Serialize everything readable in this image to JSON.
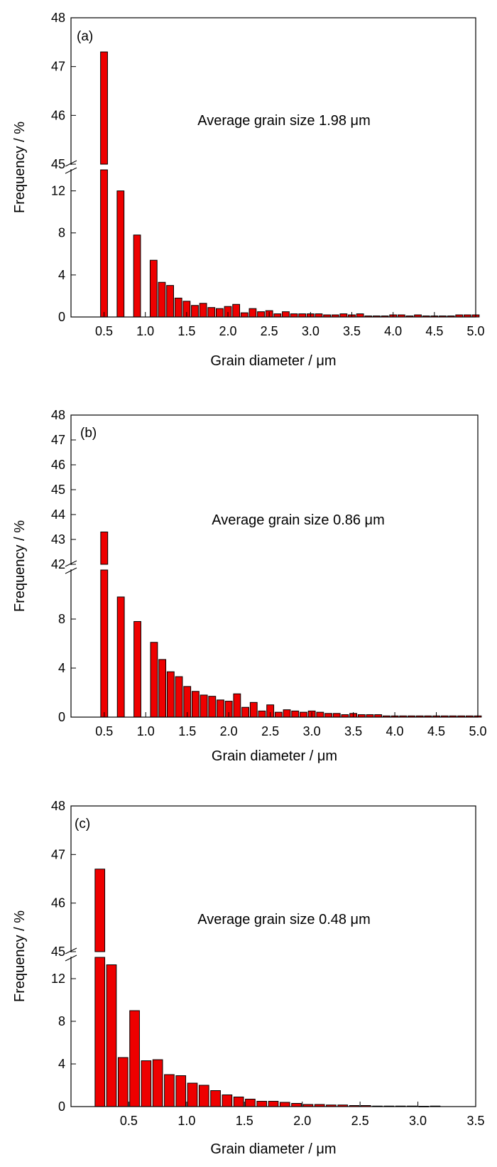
{
  "chart_data": [
    {
      "type": "bar",
      "panel_label": "(a)",
      "annotation": "Average grain size 1.98 μm",
      "xlabel": "Grain diameter / μm",
      "ylabel": "Frequency / %",
      "xlim": [
        0.1,
        5.0
      ],
      "xticks": [
        "0.5",
        "1.0",
        "1.5",
        "2.0",
        "2.5",
        "3.0",
        "3.5",
        "4.0",
        "4.5",
        "5.0"
      ],
      "xtick_values": [
        0.5,
        1.0,
        1.5,
        2.0,
        2.5,
        3.0,
        3.5,
        4.0,
        4.5,
        5.0
      ],
      "axis_break": {
        "lower_ylim": [
          0,
          14
        ],
        "upper_ylim": [
          45,
          48
        ],
        "lower_ticks": [
          "0",
          "4",
          "8",
          "12"
        ],
        "upper_ticks": [
          "45",
          "46",
          "47",
          "48"
        ]
      },
      "bin_width": 0.1,
      "x": [
        0.5,
        0.6,
        0.7,
        0.8,
        0.9,
        1.0,
        1.1,
        1.2,
        1.3,
        1.4,
        1.5,
        1.6,
        1.7,
        1.8,
        1.9,
        2.0,
        2.1,
        2.2,
        2.3,
        2.4,
        2.5,
        2.6,
        2.7,
        2.8,
        2.9,
        3.0,
        3.1,
        3.2,
        3.3,
        3.4,
        3.5,
        3.6,
        3.7,
        3.8,
        3.9,
        4.0,
        4.1,
        4.2,
        4.3,
        4.4,
        4.5,
        4.6,
        4.7,
        4.8,
        4.9,
        5.0
      ],
      "values": [
        47.3,
        0,
        12.0,
        0,
        7.8,
        0,
        5.4,
        3.3,
        3.0,
        1.8,
        1.5,
        1.1,
        1.3,
        0.9,
        0.8,
        1.0,
        1.2,
        0.4,
        0.8,
        0.5,
        0.6,
        0.3,
        0.5,
        0.3,
        0.3,
        0.3,
        0.3,
        0.2,
        0.2,
        0.3,
        0.2,
        0.3,
        0.1,
        0.1,
        0.1,
        0.2,
        0.2,
        0.1,
        0.2,
        0.1,
        0.1,
        0.1,
        0.1,
        0.2,
        0.2,
        0.2
      ],
      "colors": {
        "bar": "#ee0000",
        "bar_edge": "#000000"
      }
    },
    {
      "type": "bar",
      "panel_label": "(b)",
      "annotation": "Average grain size 0.86 μm",
      "xlabel": "Grain diameter / μm",
      "ylabel": "Frequency / %",
      "xlim": [
        0.1,
        5.0
      ],
      "xticks": [
        "0.5",
        "1.0",
        "1.5",
        "2.0",
        "2.5",
        "3.0",
        "3.5",
        "4.0",
        "4.5",
        "5.0"
      ],
      "xtick_values": [
        0.5,
        1.0,
        1.5,
        2.0,
        2.5,
        3.0,
        3.5,
        4.0,
        4.5,
        5.0
      ],
      "axis_break": {
        "lower_ylim": [
          0,
          12
        ],
        "upper_ylim": [
          42,
          48
        ],
        "lower_ticks": [
          "0",
          "4",
          "8"
        ],
        "upper_ticks": [
          "42",
          "43",
          "44",
          "45",
          "46",
          "47",
          "48"
        ]
      },
      "bin_width": 0.1,
      "x": [
        0.5,
        0.6,
        0.7,
        0.8,
        0.9,
        1.0,
        1.1,
        1.2,
        1.3,
        1.4,
        1.5,
        1.6,
        1.7,
        1.8,
        1.9,
        2.0,
        2.1,
        2.2,
        2.3,
        2.4,
        2.5,
        2.6,
        2.7,
        2.8,
        2.9,
        3.0,
        3.1,
        3.2,
        3.3,
        3.4,
        3.5,
        3.6,
        3.7,
        3.8,
        3.9,
        4.0,
        4.1,
        4.2,
        4.3,
        4.4,
        4.5,
        4.6,
        4.7,
        4.8,
        4.9,
        5.0
      ],
      "values": [
        43.3,
        0,
        9.8,
        0,
        7.8,
        0,
        6.1,
        4.7,
        3.7,
        3.3,
        2.5,
        2.1,
        1.8,
        1.7,
        1.4,
        1.3,
        1.9,
        0.8,
        1.2,
        0.5,
        1.0,
        0.4,
        0.6,
        0.5,
        0.4,
        0.5,
        0.4,
        0.3,
        0.3,
        0.2,
        0.3,
        0.2,
        0.2,
        0.2,
        0.1,
        0.1,
        0.1,
        0.1,
        0.1,
        0.1,
        0.1,
        0.1,
        0.1,
        0.1,
        0.1,
        0.1
      ],
      "colors": {
        "bar": "#ee0000",
        "bar_edge": "#000000"
      }
    },
    {
      "type": "bar",
      "panel_label": "(c)",
      "annotation": "Average grain size 0.48 μm",
      "xlabel": "Grain diameter / μm",
      "ylabel": "Frequency / %",
      "xlim": [
        0.0,
        3.5
      ],
      "xticks": [
        "0.5",
        "1.0",
        "1.5",
        "2.0",
        "2.5",
        "3.0",
        "3.5"
      ],
      "xtick_values": [
        0.5,
        1.0,
        1.5,
        2.0,
        2.5,
        3.0,
        3.5
      ],
      "axis_break": {
        "lower_ylim": [
          0,
          14
        ],
        "upper_ylim": [
          45,
          48
        ],
        "lower_ticks": [
          "0",
          "4",
          "8",
          "12"
        ],
        "upper_ticks": [
          "45",
          "46",
          "47",
          "48"
        ]
      },
      "bin_width": 0.1,
      "x": [
        0.25,
        0.35,
        0.45,
        0.55,
        0.65,
        0.75,
        0.85,
        0.95,
        1.05,
        1.15,
        1.25,
        1.35,
        1.45,
        1.55,
        1.65,
        1.75,
        1.85,
        1.95,
        2.05,
        2.15,
        2.25,
        2.35,
        2.45,
        2.55,
        2.65,
        2.75,
        2.85,
        2.95,
        3.05,
        3.15
      ],
      "values": [
        46.7,
        13.3,
        4.6,
        9.0,
        4.3,
        4.4,
        3.0,
        2.9,
        2.2,
        2.0,
        1.5,
        1.1,
        0.9,
        0.7,
        0.5,
        0.5,
        0.4,
        0.3,
        0.2,
        0.2,
        0.15,
        0.15,
        0.1,
        0.1,
        0.05,
        0.05,
        0.05,
        0.05,
        0.03,
        0.05
      ],
      "colors": {
        "bar": "#ee0000",
        "bar_edge": "#000000"
      }
    }
  ]
}
